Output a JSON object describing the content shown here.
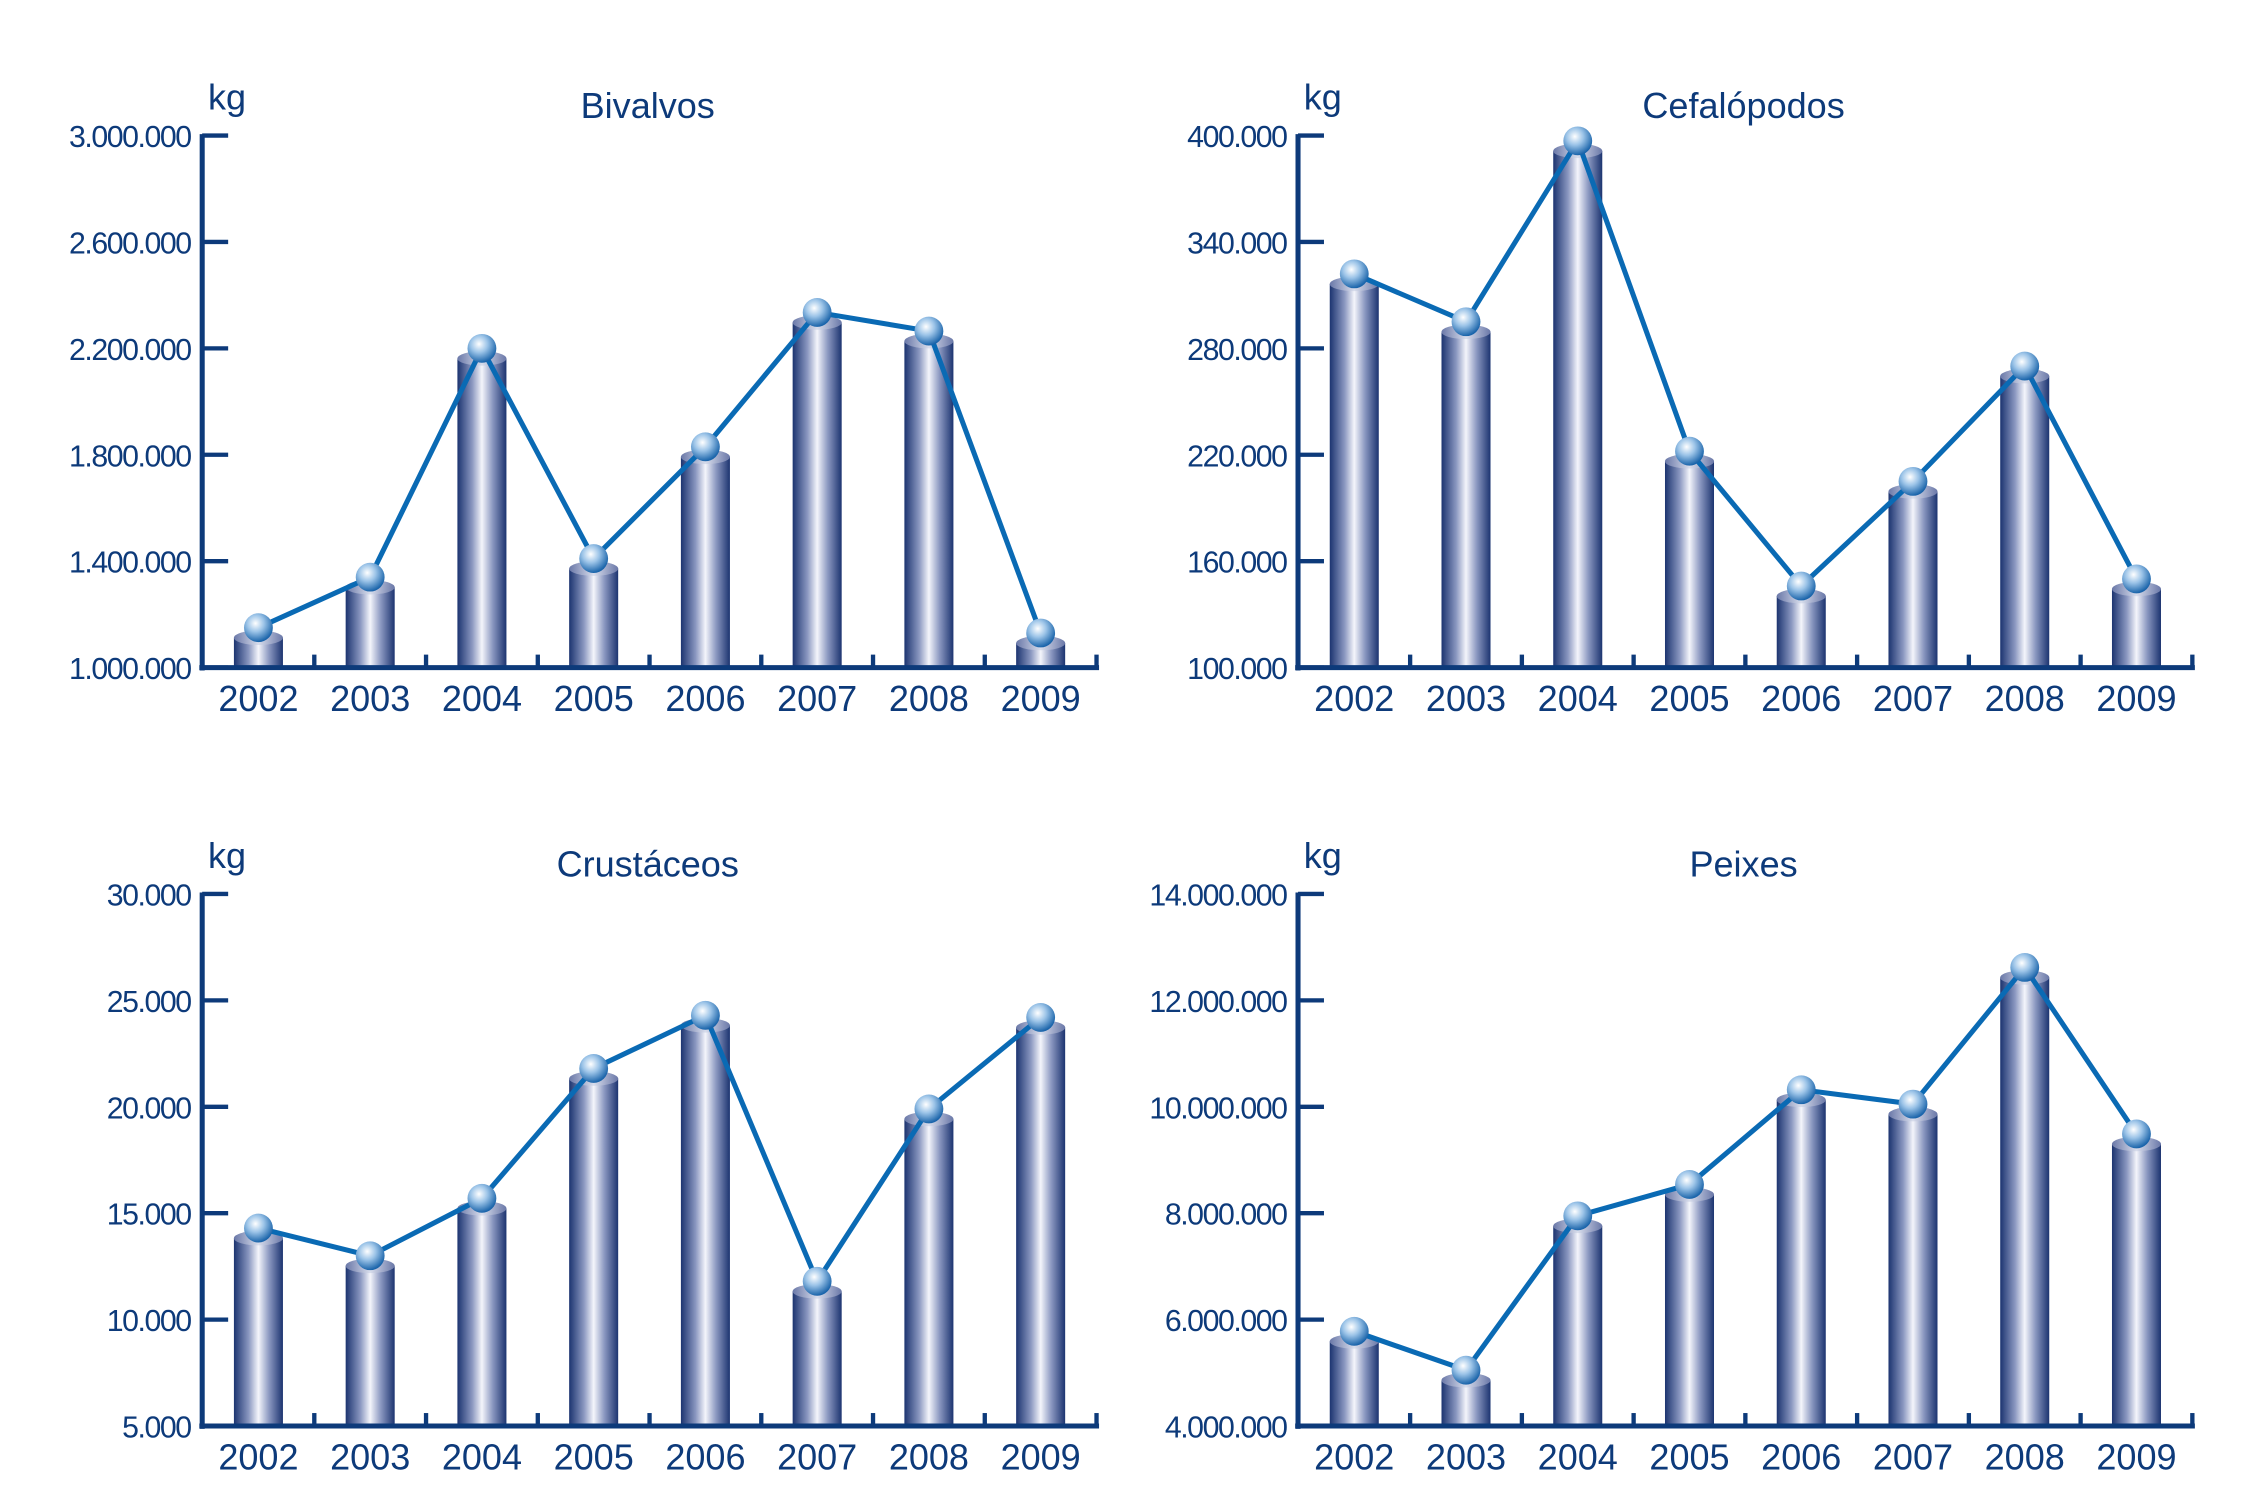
{
  "chart_data": [
    {
      "type": "bar+line",
      "title": "Bivalvos",
      "ylabel": "kg",
      "categories": [
        "2002",
        "2003",
        "2004",
        "2005",
        "2006",
        "2007",
        "2008",
        "2009"
      ],
      "values": [
        1150000,
        1340000,
        2200000,
        1410000,
        1830000,
        2335000,
        2265000,
        1130000
      ],
      "ylim": [
        1000000,
        3000000
      ],
      "yticks": [
        1000000,
        1400000,
        1800000,
        2200000,
        2600000,
        3000000
      ],
      "ytick_labels": [
        "1.000.000",
        "1.400.000",
        "1.800.000",
        "2.200.000",
        "2.600.000",
        "3.000.000"
      ]
    },
    {
      "type": "bar+line",
      "title": "Cefalópodos",
      "ylabel": "kg",
      "categories": [
        "2002",
        "2003",
        "2004",
        "2005",
        "2006",
        "2007",
        "2008",
        "2009"
      ],
      "values": [
        322000,
        295000,
        397000,
        222000,
        146000,
        205000,
        270000,
        150000
      ],
      "ylim": [
        100000,
        400000
      ],
      "yticks": [
        100000,
        160000,
        220000,
        280000,
        340000,
        400000
      ],
      "ytick_labels": [
        "100.000",
        "160.000",
        "220.000",
        "280.000",
        "340.000",
        "400.000"
      ]
    },
    {
      "type": "bar+line",
      "title": "Crustáceos",
      "ylabel": "kg",
      "categories": [
        "2002",
        "2003",
        "2004",
        "2005",
        "2006",
        "2007",
        "2008",
        "2009"
      ],
      "values": [
        14300,
        13000,
        15700,
        21800,
        24300,
        11800,
        19900,
        24200
      ],
      "ylim": [
        5000,
        30000
      ],
      "yticks": [
        5000,
        10000,
        15000,
        20000,
        25000,
        30000
      ],
      "ytick_labels": [
        "5.000",
        "10.000",
        "15.000",
        "20.000",
        "25.000",
        "30.000"
      ]
    },
    {
      "type": "bar+line",
      "title": "Peixes",
      "ylabel": "kg",
      "categories": [
        "2002",
        "2003",
        "2004",
        "2005",
        "2006",
        "2007",
        "2008",
        "2009"
      ],
      "values": [
        5780000,
        5050000,
        7950000,
        8540000,
        10320000,
        10050000,
        12620000,
        9490000
      ],
      "ylim": [
        4000000,
        14000000
      ],
      "yticks": [
        4000000,
        6000000,
        8000000,
        10000000,
        12000000,
        14000000
      ],
      "ytick_labels": [
        "4.000.000",
        "6.000.000",
        "8.000.000",
        "10.000.000",
        "12.000.000",
        "14.000.000"
      ]
    }
  ],
  "colors": {
    "axis": "#0d3a7a",
    "line": "#0a6ab4",
    "bar_dark": "#1f3a78",
    "bar_light": "#f2f4fa"
  }
}
